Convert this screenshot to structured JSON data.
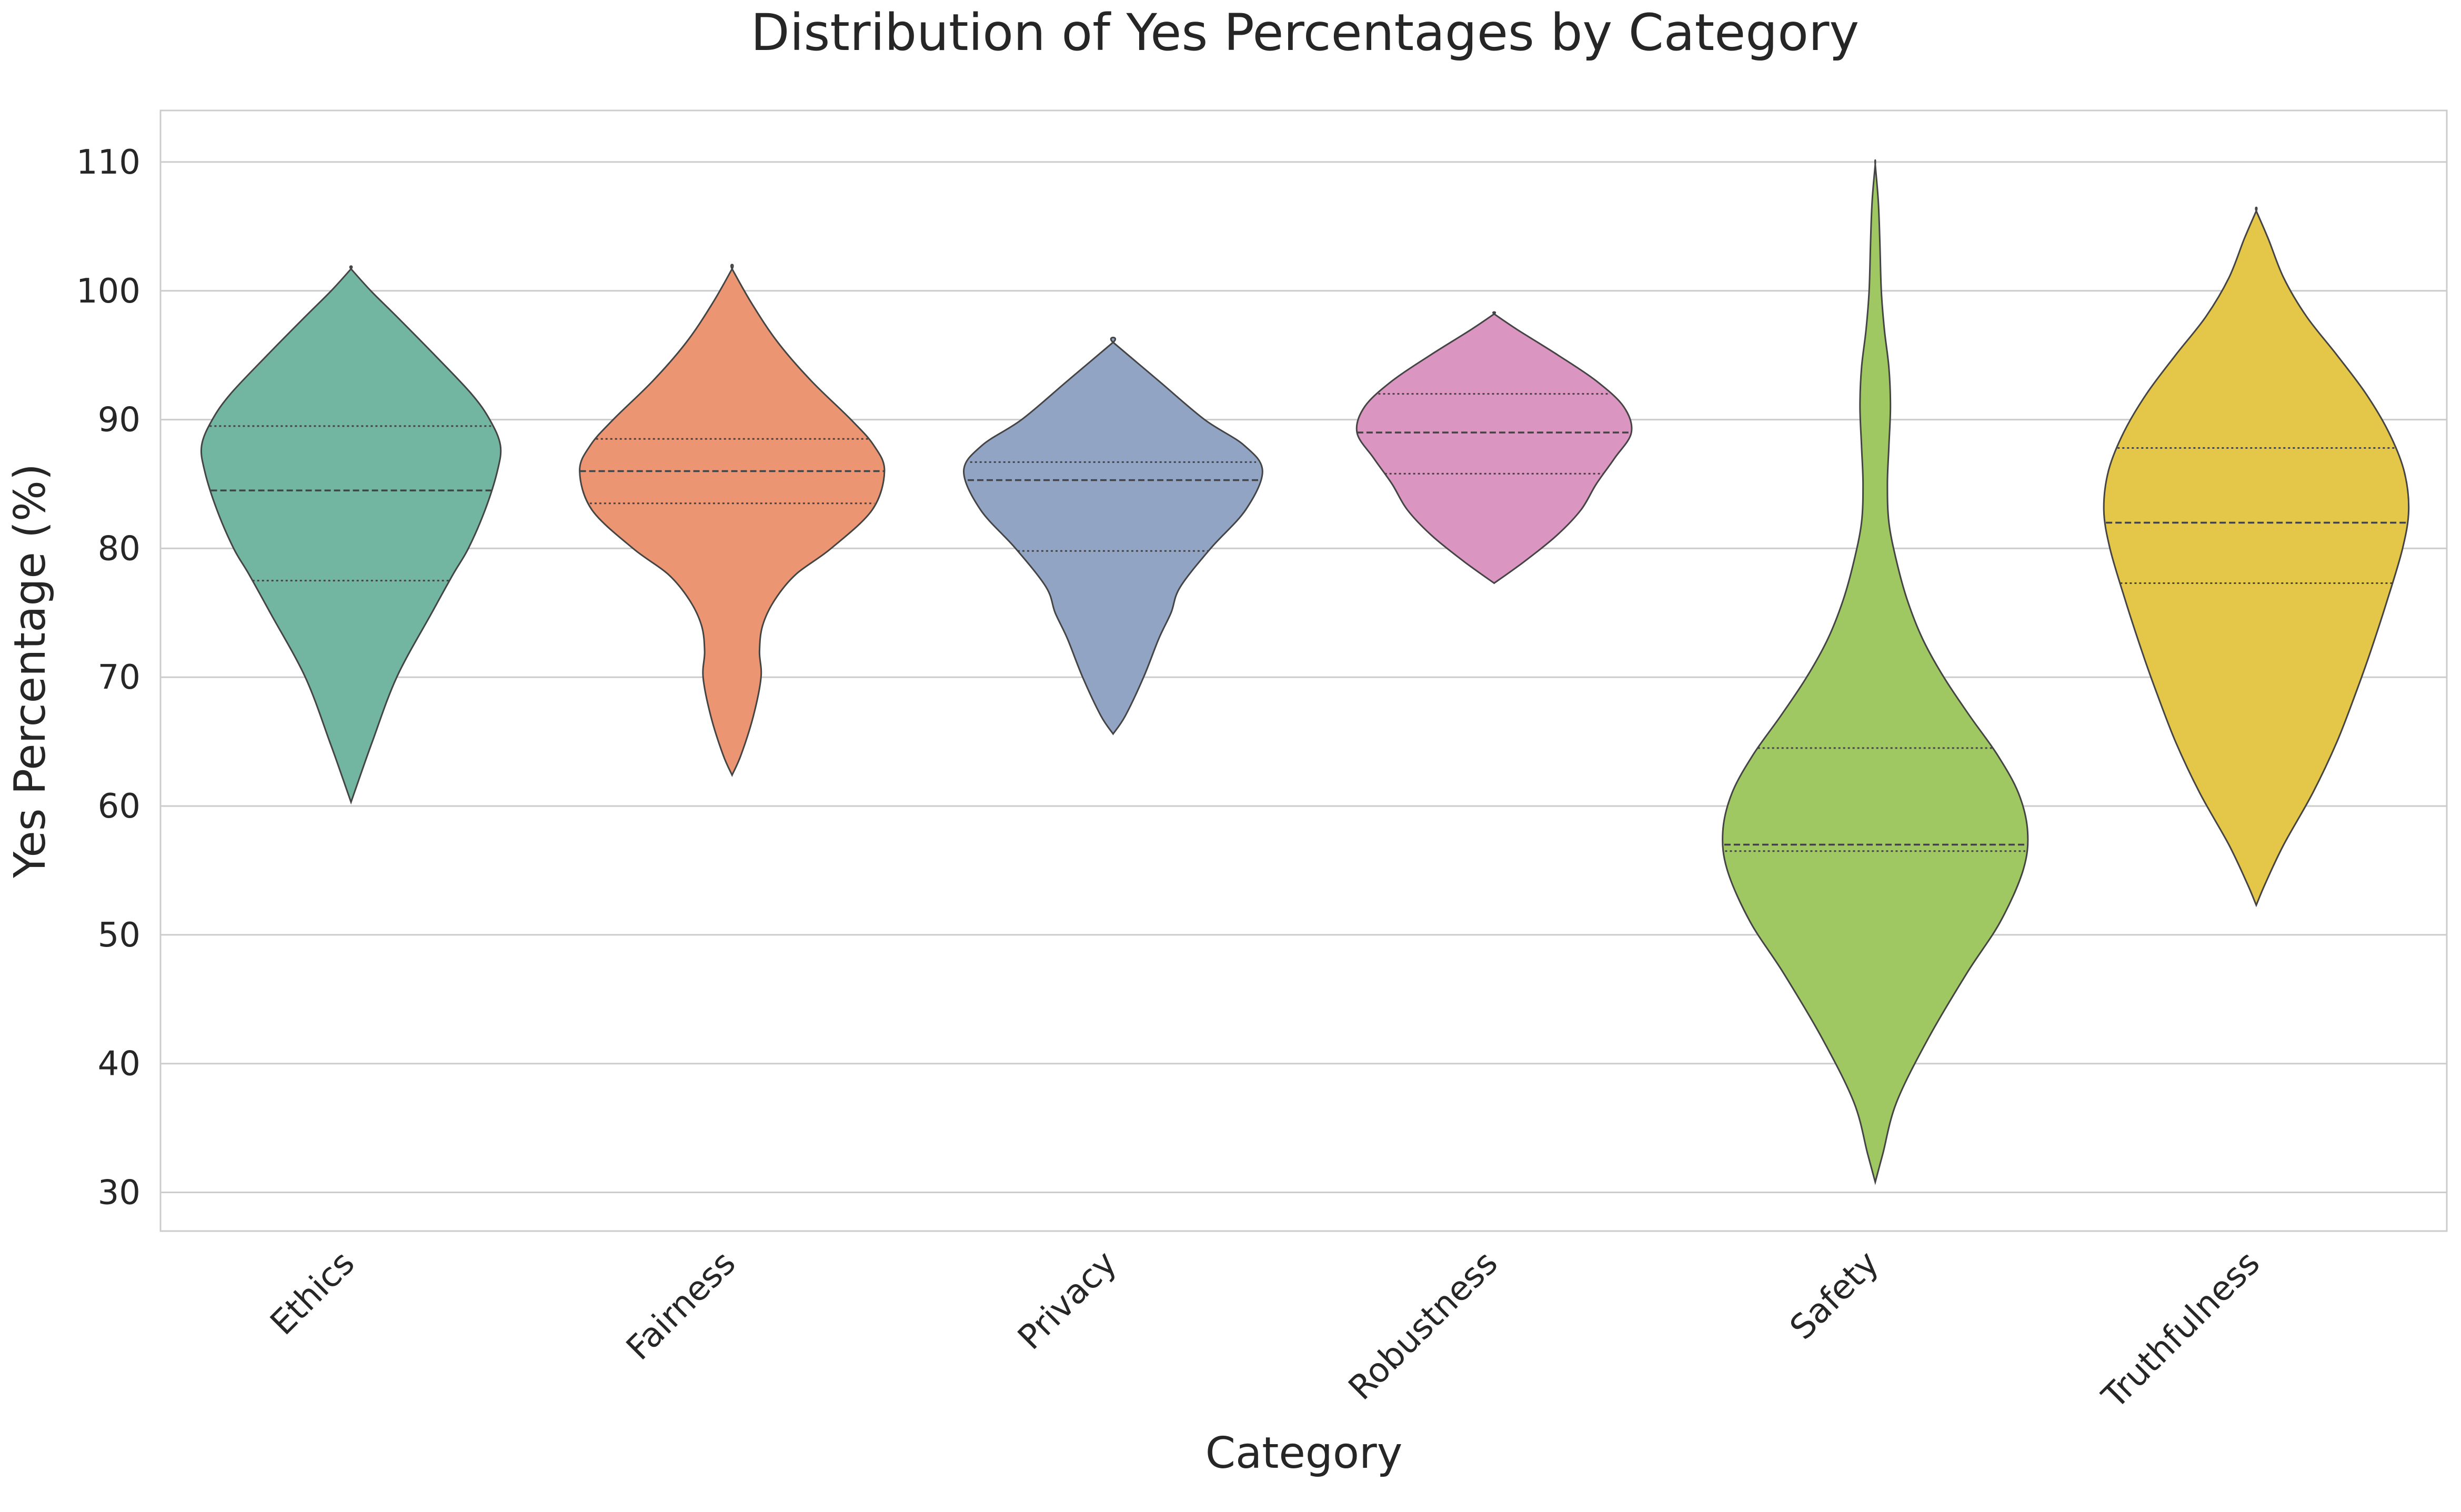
{
  "chart_data": {
    "type": "violin",
    "title": "Distribution of Yes Percentages by Category",
    "xlabel": "Category",
    "ylabel": "Yes Percentage (%)",
    "ylim": [
      27,
      114
    ],
    "yticks": [
      30,
      40,
      50,
      60,
      70,
      80,
      90,
      100,
      110
    ],
    "grid": true,
    "inner": "quartile",
    "categories": [
      "Ethics",
      "Fairness",
      "Privacy",
      "Robustness",
      "Safety",
      "Truthfulness"
    ],
    "colors": [
      "#72b5a0",
      "#eb9572",
      "#92a4c4",
      "#da96c0",
      "#a0c862",
      "#e4c748"
    ],
    "violins": [
      {
        "category": "Ethics",
        "quartiles": [
          77.5,
          84.5,
          89.5
        ],
        "range": [
          60.3,
          101.7
        ],
        "profile": [
          [
            60.3,
            0.0
          ],
          [
            62,
            0.05
          ],
          [
            65,
            0.14
          ],
          [
            70,
            0.3
          ],
          [
            75,
            0.53
          ],
          [
            78,
            0.67
          ],
          [
            80,
            0.77
          ],
          [
            83,
            0.88
          ],
          [
            86,
            0.96
          ],
          [
            88,
            0.98
          ],
          [
            90,
            0.91
          ],
          [
            92,
            0.79
          ],
          [
            95,
            0.55
          ],
          [
            98,
            0.3
          ],
          [
            100,
            0.13
          ],
          [
            101.7,
            0.0
          ]
        ]
      },
      {
        "category": "Fairness",
        "quartiles": [
          83.5,
          86.0,
          88.5
        ],
        "range": [
          62.4,
          101.7
        ],
        "profile": [
          [
            62.4,
            0.0
          ],
          [
            64,
            0.06
          ],
          [
            67,
            0.14
          ],
          [
            70,
            0.19
          ],
          [
            72,
            0.18
          ],
          [
            74,
            0.2
          ],
          [
            76,
            0.28
          ],
          [
            78,
            0.42
          ],
          [
            80,
            0.65
          ],
          [
            83,
            0.92
          ],
          [
            86,
            1.0
          ],
          [
            88,
            0.93
          ],
          [
            90,
            0.78
          ],
          [
            93,
            0.52
          ],
          [
            96,
            0.3
          ],
          [
            99,
            0.13
          ],
          [
            101.7,
            0.0
          ]
        ]
      },
      {
        "category": "Privacy",
        "quartiles": [
          79.8,
          85.3,
          86.7
        ],
        "range": [
          65.6,
          96.0
        ],
        "profile": [
          [
            65.6,
            0.0
          ],
          [
            67,
            0.08
          ],
          [
            70,
            0.2
          ],
          [
            73,
            0.3
          ],
          [
            75,
            0.38
          ],
          [
            77,
            0.44
          ],
          [
            80,
            0.64
          ],
          [
            83,
            0.87
          ],
          [
            86,
            0.98
          ],
          [
            88,
            0.86
          ],
          [
            90,
            0.6
          ],
          [
            93,
            0.3
          ],
          [
            96,
            0.0
          ]
        ]
      },
      {
        "category": "Robustness",
        "quartiles": [
          85.8,
          89.0,
          92.0
        ],
        "range": [
          77.3,
          98.2
        ],
        "profile": [
          [
            77.3,
            0.0
          ],
          [
            79,
            0.2
          ],
          [
            81,
            0.41
          ],
          [
            83,
            0.57
          ],
          [
            85,
            0.67
          ],
          [
            87,
            0.79
          ],
          [
            89,
            0.9
          ],
          [
            91,
            0.85
          ],
          [
            93,
            0.67
          ],
          [
            95,
            0.42
          ],
          [
            97,
            0.15
          ],
          [
            98.2,
            0.0
          ]
        ]
      },
      {
        "category": "Safety",
        "quartiles": [
          56.5,
          57.0,
          64.5
        ],
        "range": [
          30.8,
          109.8
        ],
        "profile": [
          [
            30.8,
            0.0
          ],
          [
            33,
            0.05
          ],
          [
            37,
            0.14
          ],
          [
            42,
            0.35
          ],
          [
            47,
            0.6
          ],
          [
            51,
            0.82
          ],
          [
            55,
            0.97
          ],
          [
            58,
            1.0
          ],
          [
            61,
            0.94
          ],
          [
            64,
            0.8
          ],
          [
            67,
            0.62
          ],
          [
            70,
            0.45
          ],
          [
            73,
            0.31
          ],
          [
            76,
            0.21
          ],
          [
            79,
            0.14
          ],
          [
            82,
            0.09
          ],
          [
            85,
            0.08
          ],
          [
            88,
            0.09
          ],
          [
            91,
            0.1
          ],
          [
            94,
            0.09
          ],
          [
            97,
            0.06
          ],
          [
            100,
            0.04
          ],
          [
            104,
            0.03
          ],
          [
            107,
            0.02
          ],
          [
            109.8,
            0.0
          ]
        ]
      },
      {
        "category": "Truthfulness",
        "quartiles": [
          77.3,
          82.0,
          87.8
        ],
        "range": [
          52.3,
          106.2
        ],
        "profile": [
          [
            52.3,
            0.0
          ],
          [
            54,
            0.06
          ],
          [
            57,
            0.18
          ],
          [
            61,
            0.37
          ],
          [
            65,
            0.53
          ],
          [
            69,
            0.66
          ],
          [
            72,
            0.75
          ],
          [
            76,
            0.86
          ],
          [
            80,
            0.96
          ],
          [
            83,
            1.0
          ],
          [
            86,
            0.97
          ],
          [
            89,
            0.87
          ],
          [
            92,
            0.72
          ],
          [
            95,
            0.53
          ],
          [
            98,
            0.33
          ],
          [
            101,
            0.18
          ],
          [
            104,
            0.08
          ],
          [
            106.2,
            0.0
          ]
        ]
      }
    ]
  }
}
